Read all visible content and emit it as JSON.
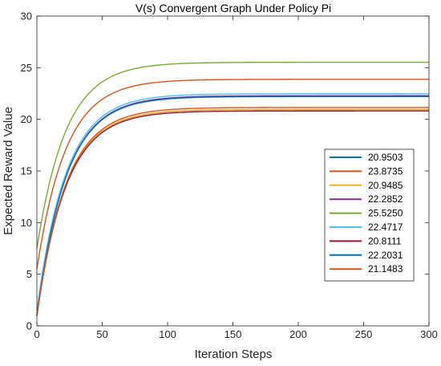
{
  "chart_data": {
    "type": "line",
    "title": "V(s) Convergent Graph Under Policy Pi",
    "xlabel": "Iteration Steps",
    "ylabel": "Expected Reward Value",
    "xlim": [
      0,
      300
    ],
    "ylim": [
      0,
      30
    ],
    "xticks": [
      0,
      50,
      100,
      150,
      200,
      250,
      300
    ],
    "yticks": [
      0,
      5,
      10,
      15,
      20,
      25,
      30
    ],
    "grid": false,
    "legend_position": "right, lower-middle",
    "curve_form": "exponential approach from initial value to final value",
    "series": [
      {
        "name": "20.9503",
        "color": "#0072BD",
        "final": 20.9503,
        "start": 1.0,
        "rate": 0.045
      },
      {
        "name": "23.8735",
        "color": "#D95319",
        "final": 23.8735,
        "start": 5.5,
        "rate": 0.045
      },
      {
        "name": "20.9485",
        "color": "#EDB120",
        "final": 20.9485,
        "start": 1.0,
        "rate": 0.045
      },
      {
        "name": "22.2852",
        "color": "#7E2F8E",
        "final": 22.2852,
        "start": 1.0,
        "rate": 0.045
      },
      {
        "name": "25.5250",
        "color": "#77AC30",
        "final": 25.525,
        "start": 7.5,
        "rate": 0.045
      },
      {
        "name": "22.4717",
        "color": "#4DBEEE",
        "final": 22.4717,
        "start": 1.5,
        "rate": 0.045
      },
      {
        "name": "20.8111",
        "color": "#A2142F",
        "final": 20.8111,
        "start": 1.0,
        "rate": 0.045
      },
      {
        "name": "22.2031",
        "color": "#0072BD",
        "final": 22.2031,
        "start": 1.0,
        "rate": 0.045
      },
      {
        "name": "21.1483",
        "color": "#D95319",
        "final": 21.1483,
        "start": 1.0,
        "rate": 0.045
      }
    ]
  }
}
